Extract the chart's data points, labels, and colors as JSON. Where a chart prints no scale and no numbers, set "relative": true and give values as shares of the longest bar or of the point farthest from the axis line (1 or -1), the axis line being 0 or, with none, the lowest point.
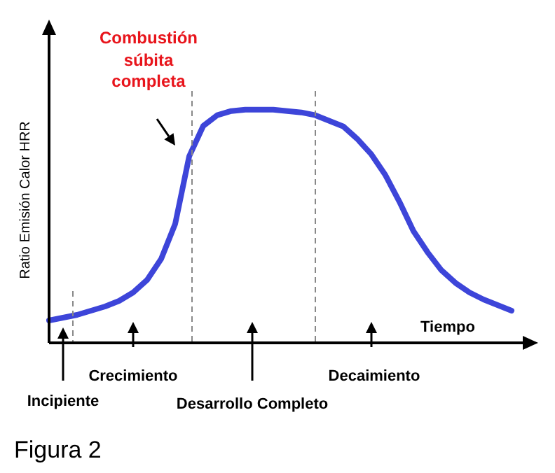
{
  "chart_data": {
    "type": "line",
    "relative": true,
    "ylabel": "Ratio Emisión Calor HRR",
    "xlabel": "Tiempo",
    "categories": [
      null,
      null,
      null,
      null,
      null,
      null,
      null,
      null,
      null,
      null,
      null,
      null,
      null,
      null,
      null,
      null,
      null,
      null,
      null,
      null,
      null,
      null,
      null,
      null,
      null,
      null,
      null,
      null,
      null,
      null,
      null,
      null,
      null,
      null
    ],
    "series": [
      {
        "color": "#3d45d9",
        "values": [
          0.096,
          0.108,
          0.12,
          0.138,
          0.156,
          0.18,
          0.216,
          0.27,
          0.36,
          0.51,
          0.8,
          0.93,
          0.976,
          0.994,
          1,
          1,
          1,
          0.994,
          0.988,
          0.976,
          0.952,
          0.928,
          0.874,
          0.808,
          0.719,
          0.605,
          0.479,
          0.389,
          0.311,
          0.257,
          0.216,
          0.186,
          0.162,
          0.138
        ]
      }
    ],
    "annotations": [
      "Combustión súbita completa",
      "Incipiente",
      "Crecimiento",
      "Desarrollo Completo",
      "Decaimiento",
      "Figura 2"
    ],
    "marker": "none",
    "grid": false,
    "legend": false
  }
}
